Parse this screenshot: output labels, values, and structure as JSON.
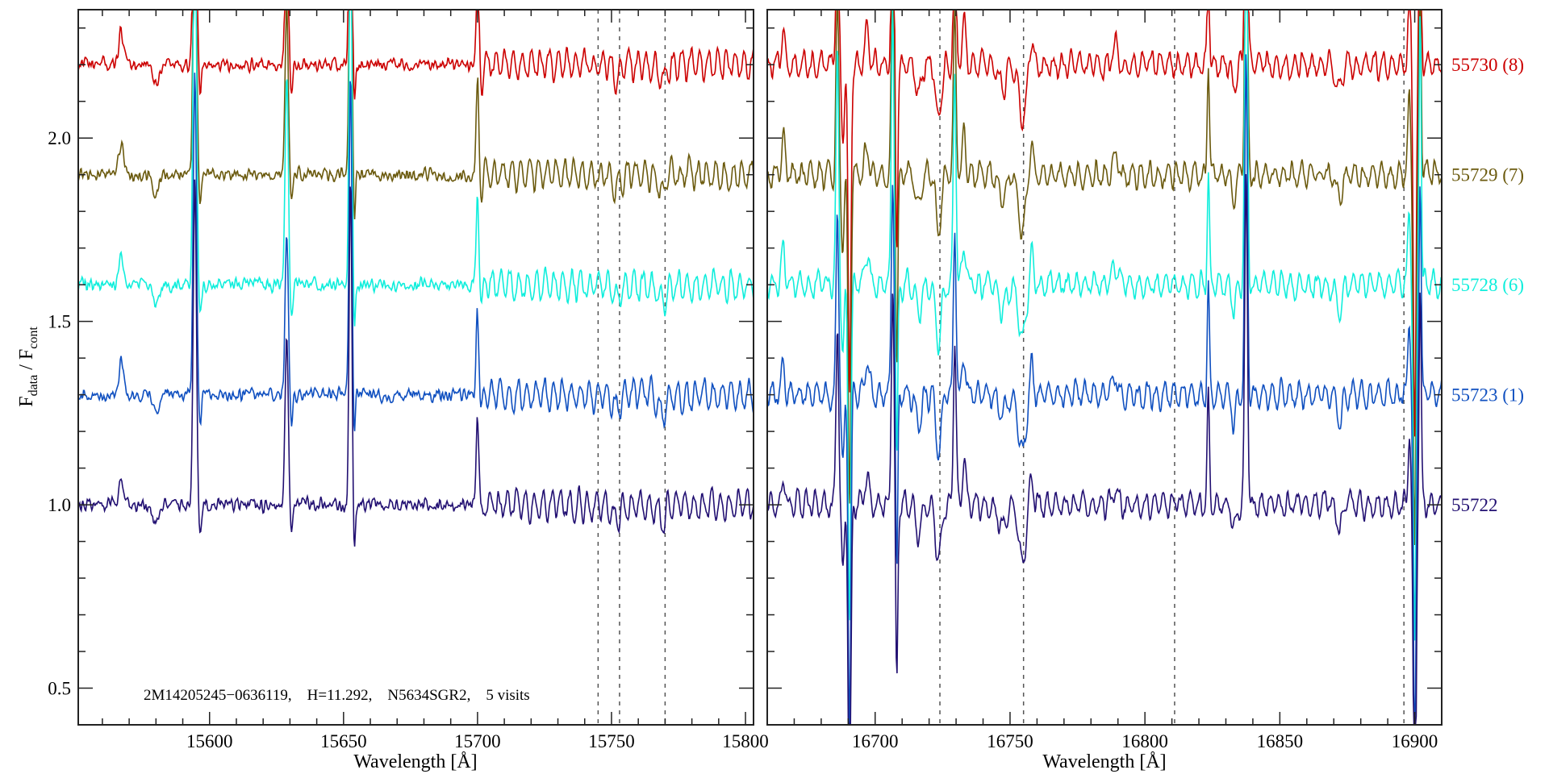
{
  "chart_data": {
    "type": "line",
    "ylabel_main": "F",
    "ylabel_sub1": "data",
    "ylabel_sep": " / F",
    "ylabel_sub2": "cont",
    "ylim": [
      0.4,
      2.35
    ],
    "yticks": [
      0.5,
      1.0,
      1.5,
      2.0
    ],
    "ytick_labels": [
      "0.5",
      "1.0",
      "1.5",
      "2.0"
    ],
    "annotation": "2M14205245−0636119,    H=11.292,    N5634SGR2,    5 visits",
    "panels": [
      {
        "xlabel": "Wavelength [Å]",
        "xlim": [
          15551,
          15803
        ],
        "xticks": [
          15600,
          15650,
          15700,
          15750,
          15800
        ],
        "xtick_labels": [
          "15600",
          "15650",
          "15700",
          "15750",
          "15800"
        ],
        "dashed_lines": [
          15745,
          15753,
          15770
        ],
        "features": [
          {
            "w": 15567,
            "a": 0.09,
            "s": 0.8
          },
          {
            "w": 15580,
            "a": -0.05,
            "s": 1.2
          },
          {
            "w": 15594.5,
            "a": 0.9,
            "s": 0.6
          },
          {
            "w": 15596.5,
            "a": -0.08,
            "s": 0.5
          },
          {
            "w": 15628.8,
            "a": 0.45,
            "s": 0.6
          },
          {
            "w": 15630.5,
            "a": -0.08,
            "s": 0.5
          },
          {
            "w": 15652.6,
            "a": 0.9,
            "s": 0.5
          },
          {
            "w": 15654,
            "a": -0.12,
            "s": 0.4
          },
          {
            "w": 15700,
            "a": 0.25,
            "s": 0.5
          },
          {
            "w": 15701.5,
            "a": -0.05,
            "s": 0.5
          },
          {
            "w": 15752,
            "a": -0.04,
            "s": 1.5
          },
          {
            "w": 15769,
            "a": -0.05,
            "s": 1.2
          }
        ],
        "oscillation_start": 15700
      },
      {
        "xlabel": "Wavelength [Å]",
        "xlim": [
          16660,
          16910
        ],
        "xticks": [
          16700,
          16750,
          16800,
          16850,
          16900
        ],
        "xtick_labels": [
          "16700",
          "16750",
          "16800",
          "16850",
          "16900"
        ],
        "dashed_lines": [
          16724,
          16755,
          16811,
          16896
        ],
        "features": [
          {
            "w": 16666,
            "a": 0.1,
            "s": 0.6
          },
          {
            "w": 16686,
            "a": 0.5,
            "s": 0.5
          },
          {
            "w": 16688,
            "a": -0.2,
            "s": 0.5
          },
          {
            "w": 16690.5,
            "a": -0.9,
            "s": 0.5
          },
          {
            "w": 16697,
            "a": 0.08,
            "s": 0.8
          },
          {
            "w": 16706.5,
            "a": 0.6,
            "s": 0.5
          },
          {
            "w": 16708,
            "a": -0.5,
            "s": 0.4
          },
          {
            "w": 16716,
            "a": -0.08,
            "s": 1.0
          },
          {
            "w": 16723.5,
            "a": -0.15,
            "s": 1.0
          },
          {
            "w": 16729.5,
            "a": 0.45,
            "s": 0.5
          },
          {
            "w": 16733,
            "a": 0.12,
            "s": 0.6
          },
          {
            "w": 16747,
            "a": -0.06,
            "s": 1.5
          },
          {
            "w": 16754.5,
            "a": -0.16,
            "s": 1.3
          },
          {
            "w": 16758,
            "a": 0.08,
            "s": 0.6
          },
          {
            "w": 16789,
            "a": 0.05,
            "s": 1.0
          },
          {
            "w": 16823.5,
            "a": 0.3,
            "s": 0.4
          },
          {
            "w": 16833,
            "a": -0.08,
            "s": 0.6
          },
          {
            "w": 16837.5,
            "a": 0.9,
            "s": 0.5
          },
          {
            "w": 16872,
            "a": -0.07,
            "s": 1.0
          },
          {
            "w": 16898,
            "a": 0.2,
            "s": 0.5
          },
          {
            "w": 16900,
            "a": -1.0,
            "s": 0.5
          },
          {
            "w": 16902,
            "a": 0.6,
            "s": 0.4
          }
        ],
        "oscillation_start": 16660
      }
    ],
    "series": [
      {
        "name": "55730 (8)",
        "offset": 2.2,
        "color": "#cc0000",
        "seed": 11
      },
      {
        "name": "55729 (7)",
        "offset": 1.9,
        "color": "#6b5a0e",
        "seed": 23
      },
      {
        "name": "55728 (6)",
        "offset": 1.6,
        "color": "#10eedc",
        "seed": 37
      },
      {
        "name": "55723 (1)",
        "offset": 1.3,
        "color": "#1050c0",
        "seed": 41
      },
      {
        "name": "55722",
        "offset": 1.0,
        "color": "#221072",
        "seed": 53
      }
    ]
  }
}
